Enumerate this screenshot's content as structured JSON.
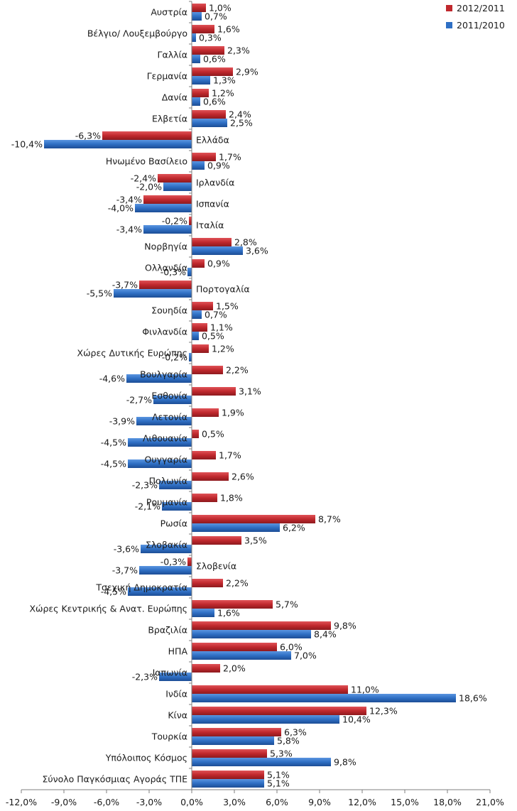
{
  "chart_data": {
    "type": "bar",
    "orientation": "horizontal",
    "legend_position": "top-right",
    "grid": false,
    "xlim": [
      -12,
      21
    ],
    "xticks": [
      -12,
      -9,
      -6,
      -3,
      0,
      3,
      6,
      9,
      12,
      15,
      18,
      21
    ],
    "xtick_labels": [
      "-12,0%",
      "-9,0%",
      "-6,0%",
      "-3,0%",
      "0,0%",
      "3,0%",
      "6,0%",
      "9,0%",
      "12,0%",
      "15,0%",
      "18,0%",
      "21,0%"
    ],
    "categories": [
      "Αυστρία",
      "Βέλγιο/ Λουξεμβούργο",
      "Γαλλία",
      "Γερμανία",
      "Δανία",
      "Ελβετία",
      "Ελλάδα",
      "Ηνωμένο Βασίλειο",
      "Ιρλανδία",
      "Ισπανία",
      "Ιταλία",
      "Νορβηγία",
      "Ολλανδία",
      "Πορτογαλία",
      "Σουηδία",
      "Φινλανδία",
      "Χώρες Δυτικής Ευρώπης",
      "Βουλγαρία",
      "Εσθονία",
      "Λετονία",
      "Λιθουανία",
      "Ουγγαρία",
      "Πολωνία",
      "Ρουμανία",
      "Ρωσία",
      "Σλοβακία",
      "Σλοβενία",
      "Τσεχική Δημοκρατία",
      "Χώρες Κεντρικής & Ανατ. Ευρώπης",
      "Βραζιλία",
      "ΗΠΑ",
      "Ιαπωνία",
      "Ινδία",
      "Κίνα",
      "Τουρκία",
      "Υπόλοιπος Κόσμος",
      "Σύνολο Παγκόσμιας Αγοράς ΤΠΕ"
    ],
    "series": [
      {
        "name": "2012/2011",
        "color": "#c0282d",
        "values": [
          1.0,
          1.6,
          2.3,
          2.9,
          1.2,
          2.4,
          -6.3,
          1.7,
          -2.4,
          -3.4,
          -0.2,
          2.8,
          0.9,
          -3.7,
          1.5,
          1.1,
          1.2,
          2.2,
          3.1,
          1.9,
          0.5,
          1.7,
          2.6,
          1.8,
          8.7,
          3.5,
          -0.3,
          2.2,
          5.7,
          9.8,
          6.0,
          2.0,
          11.0,
          12.3,
          6.3,
          5.3,
          5.1
        ],
        "labels": [
          "1,0%",
          "1,6%",
          "2,3%",
          "2,9%",
          "1,2%",
          "2,4%",
          "-6,3%",
          "1,7%",
          "-2,4%",
          "-3,4%",
          "-0,2%",
          "2,8%",
          "0,9%",
          "-3,7%",
          "1,5%",
          "1,1%",
          "1,2%",
          "2,2%",
          "3,1%",
          "1,9%",
          "0,5%",
          "1,7%",
          "2,6%",
          "1,8%",
          "8,7%",
          "3,5%",
          "-0,3%",
          "2,2%",
          "5,7%",
          "9,8%",
          "6,0%",
          "2,0%",
          "11,0%",
          "12,3%",
          "6,3%",
          "5,3%",
          "5,1%"
        ]
      },
      {
        "name": "2011/2010",
        "color": "#2e6fc4",
        "values": [
          0.7,
          0.3,
          0.6,
          1.3,
          0.6,
          2.5,
          -10.4,
          0.9,
          -2.0,
          -4.0,
          -3.4,
          3.6,
          -0.3,
          -5.5,
          0.7,
          0.5,
          -0.2,
          -4.6,
          -2.7,
          -3.9,
          -4.5,
          -4.5,
          -2.3,
          -2.1,
          6.2,
          -3.6,
          -3.7,
          -4.5,
          1.6,
          8.4,
          7.0,
          -2.3,
          18.6,
          10.4,
          5.8,
          9.8,
          5.1
        ],
        "labels": [
          "0,7%",
          "0,3%",
          "0,6%",
          "1,3%",
          "0,6%",
          "2,5%",
          "-10,4%",
          "0,9%",
          "-2,0%",
          "-4,0%",
          "-3,4%",
          "3,6%",
          "-0,3%",
          "-5,5%",
          "0,7%",
          "0,5%",
          "-0,2%",
          "-4,6%",
          "-2,7%",
          "-3,9%",
          "-4,5%",
          "-4,5%",
          "-2,3%",
          "-2,1%",
          "6,2%",
          "-3,6%",
          "-3,7%",
          "-4,5%",
          "1,6%",
          "8,4%",
          "7,0%",
          "-2,3%",
          "18,6%",
          "10,4%",
          "5,8%",
          "9,8%",
          "5,1%"
        ]
      }
    ]
  }
}
